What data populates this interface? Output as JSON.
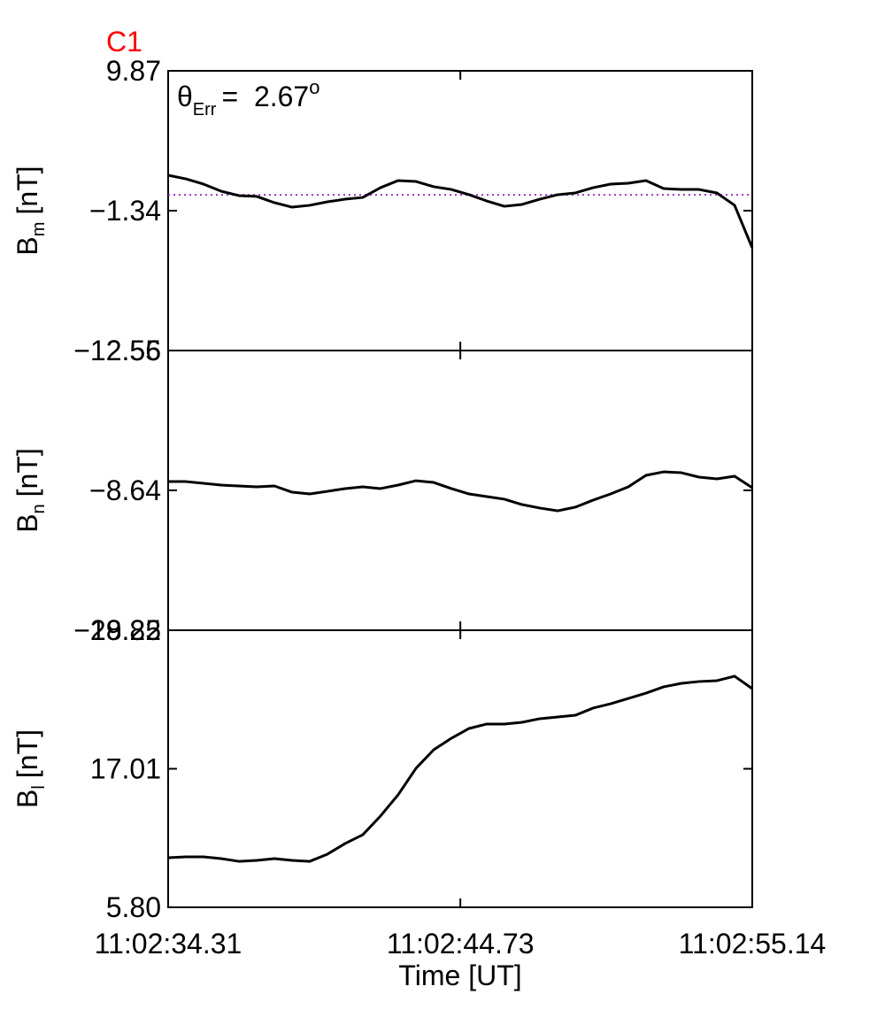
{
  "chart_data": [
    {
      "type": "line",
      "title": "C1",
      "title_color": "#ff0000",
      "annotation": {
        "symbol": "θ",
        "subscript": "Err",
        "text": "=  2.67",
        "superscript": "o"
      },
      "ylabel": {
        "text": "B",
        "subscript": "m",
        "unit": "[nT]"
      },
      "xlim": [
        34.31,
        55.14
      ],
      "ylim": [
        -12.55,
        9.87
      ],
      "yticks": [
        {
          "value": -12.55,
          "label": "−12.55"
        },
        {
          "value": -1.34,
          "label": "−1.34"
        },
        9.87
      ],
      "hline": {
        "value": -0.07,
        "color": "#9933cc"
      },
      "x": [
        34.31,
        34.94,
        35.57,
        36.2,
        36.83,
        37.47,
        38.1,
        38.73,
        39.36,
        39.99,
        40.62,
        41.25,
        41.88,
        42.51,
        43.15,
        43.78,
        44.41,
        45.04,
        45.67,
        46.3,
        46.93,
        47.56,
        48.2,
        48.83,
        49.46,
        50.09,
        50.72,
        51.35,
        51.98,
        52.61,
        53.24,
        53.88,
        54.51,
        55.14
      ],
      "series": [
        {
          "color": "#000000",
          "values": [
            1.5,
            1.21,
            0.79,
            0.22,
            -0.13,
            -0.2,
            -0.7,
            -1.06,
            -0.91,
            -0.63,
            -0.42,
            -0.28,
            0.5,
            1.07,
            1.0,
            0.58,
            0.36,
            -0.06,
            -0.56,
            -0.99,
            -0.84,
            -0.42,
            -0.06,
            0.08,
            0.5,
            0.79,
            0.86,
            1.07,
            0.43,
            0.36,
            0.36,
            0.08,
            -0.91,
            -4.32
          ]
        }
      ]
    },
    {
      "type": "line",
      "ylabel": {
        "text": "B",
        "subscript": "n",
        "unit": "[nT]"
      },
      "xlim": [
        34.31,
        55.14
      ],
      "ylim": [
        -19.85,
        2.56
      ],
      "yticks": [
        {
          "value": -19.85,
          "label": "−19.85"
        },
        {
          "value": -8.64,
          "label": "−8.64"
        },
        2.56
      ],
      "x": [
        34.31,
        34.94,
        35.57,
        36.2,
        36.83,
        37.47,
        38.1,
        38.73,
        39.36,
        39.99,
        40.62,
        41.25,
        41.88,
        42.51,
        43.15,
        43.78,
        44.41,
        45.04,
        45.67,
        46.3,
        46.93,
        47.56,
        48.2,
        48.83,
        49.46,
        50.09,
        50.72,
        51.35,
        51.98,
        52.61,
        53.24,
        53.88,
        54.51,
        55.14
      ],
      "series": [
        {
          "color": "#000000",
          "values": [
            -7.94,
            -7.94,
            -8.08,
            -8.22,
            -8.29,
            -8.36,
            -8.29,
            -8.79,
            -8.93,
            -8.72,
            -8.5,
            -8.36,
            -8.5,
            -8.22,
            -7.87,
            -8.01,
            -8.5,
            -8.93,
            -9.14,
            -9.35,
            -9.78,
            -10.06,
            -10.28,
            -9.99,
            -9.43,
            -8.93,
            -8.36,
            -7.44,
            -7.16,
            -7.23,
            -7.58,
            -7.72,
            -7.51,
            -8.43
          ]
        }
      ]
    },
    {
      "type": "line",
      "ylabel": {
        "text": "B",
        "subscript": "l",
        "unit": "[nT]"
      },
      "xlabel": "Time [UT]",
      "xlim": [
        34.31,
        55.14
      ],
      "xticks": [
        {
          "value": 34.31,
          "label": "11:02:34.31"
        },
        {
          "value": 44.73,
          "label": "11:02:44.73"
        },
        {
          "value": 55.14,
          "label": "11:02:55.14"
        }
      ],
      "ylim": [
        5.8,
        28.22
      ],
      "yticks": [
        {
          "value": 5.8,
          "label": "5.80"
        },
        17.01,
        28.22
      ],
      "x": [
        34.31,
        34.94,
        35.57,
        36.2,
        36.83,
        37.47,
        38.1,
        38.73,
        39.36,
        39.99,
        40.62,
        41.25,
        41.88,
        42.51,
        43.15,
        43.78,
        44.41,
        45.04,
        45.67,
        46.3,
        46.93,
        47.56,
        48.2,
        48.83,
        49.46,
        50.09,
        50.72,
        51.35,
        51.98,
        52.61,
        53.24,
        53.88,
        54.51,
        55.14
      ],
      "series": [
        {
          "color": "#000000",
          "values": [
            9.81,
            9.88,
            9.88,
            9.74,
            9.52,
            9.6,
            9.74,
            9.6,
            9.52,
            10.1,
            10.96,
            11.67,
            13.18,
            14.9,
            17.05,
            18.55,
            19.48,
            20.27,
            20.63,
            20.63,
            20.77,
            21.06,
            21.2,
            21.34,
            21.92,
            22.27,
            22.7,
            23.13,
            23.64,
            23.92,
            24.07,
            24.14,
            24.5,
            23.49
          ]
        }
      ]
    }
  ]
}
